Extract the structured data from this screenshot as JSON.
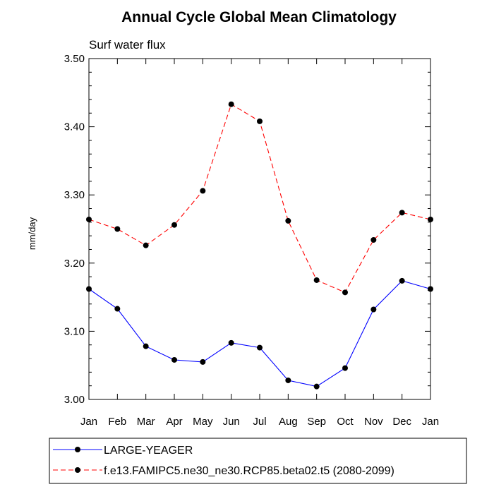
{
  "chart_data": {
    "type": "line",
    "title": "Annual Cycle Global Mean Climatology",
    "subtitle": "Surf water flux",
    "ylabel": "mm/day",
    "xlabel": "",
    "categories": [
      "Jan",
      "Feb",
      "Mar",
      "Apr",
      "May",
      "Jun",
      "Jul",
      "Aug",
      "Sep",
      "Oct",
      "Nov",
      "Dec",
      "Jan"
    ],
    "ylim": [
      3.0,
      3.5
    ],
    "yticks": [
      "3.00",
      "3.10",
      "3.20",
      "3.30",
      "3.40",
      "3.50"
    ],
    "ytick_values": [
      3.0,
      3.1,
      3.2,
      3.3,
      3.4,
      3.5
    ],
    "grid": false,
    "legend_position": "bottom",
    "series": [
      {
        "name": "LARGE-YEAGER",
        "color": "#0000ff",
        "dash": "solid",
        "values": [
          3.162,
          3.133,
          3.078,
          3.058,
          3.055,
          3.083,
          3.076,
          3.028,
          3.019,
          3.046,
          3.132,
          3.174,
          3.162
        ]
      },
      {
        "name": "f.e13.FAMIPC5.ne30_ne30.RCP85.beta02.t5 (2080-2099)",
        "color": "#ff0000",
        "dash": "dashed",
        "values": [
          3.264,
          3.25,
          3.226,
          3.256,
          3.306,
          3.433,
          3.408,
          3.262,
          3.175,
          3.157,
          3.234,
          3.274,
          3.264
        ]
      }
    ]
  }
}
